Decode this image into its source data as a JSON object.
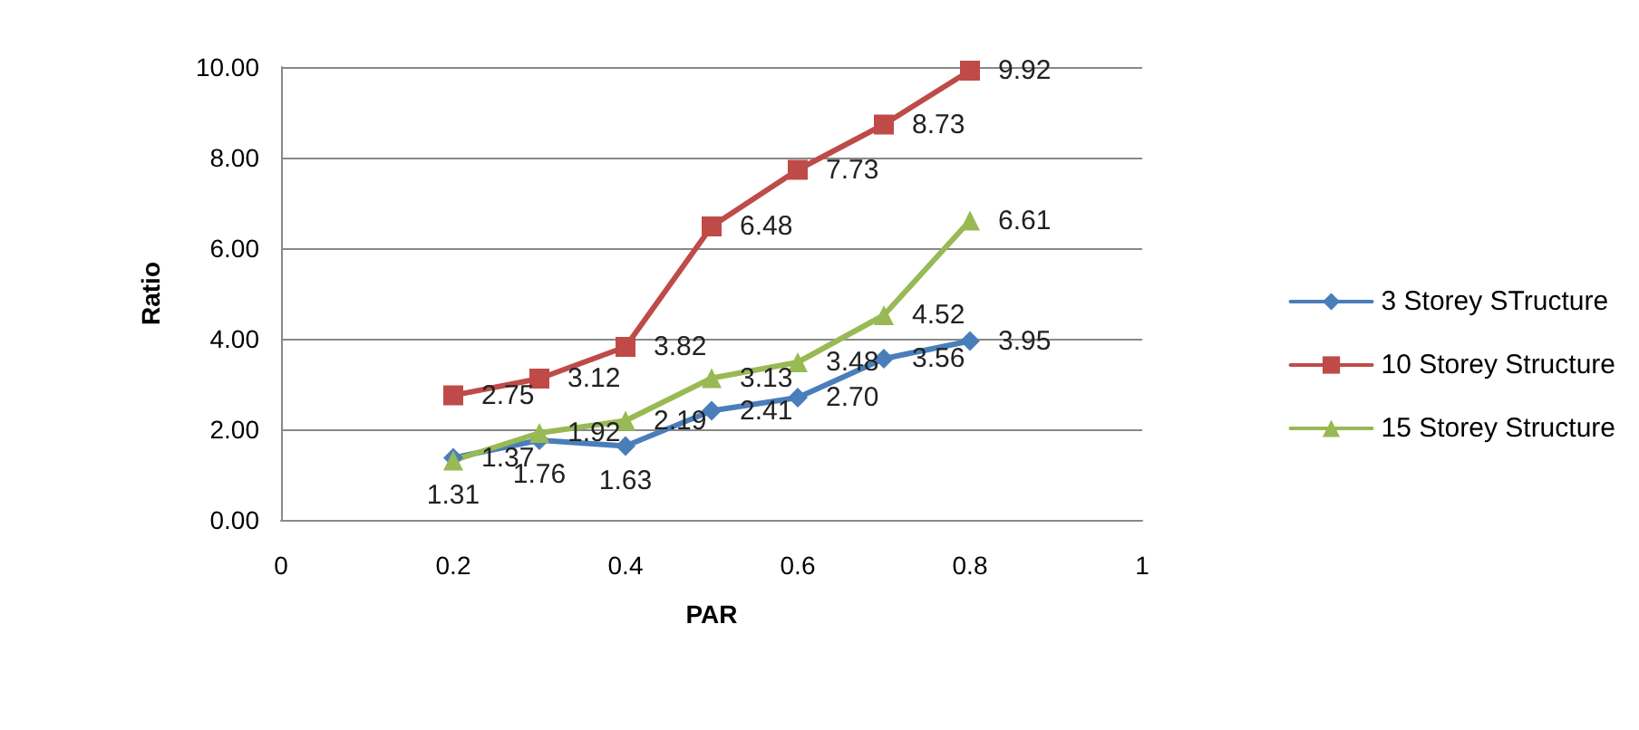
{
  "chart_data": {
    "type": "line",
    "xlabel": "PAR",
    "ylabel": "Ratio",
    "x": [
      0.2,
      0.3,
      0.4,
      0.5,
      0.6,
      0.7,
      0.8
    ],
    "series": [
      {
        "name": "3 Storey STructure",
        "color": "#4a7ebb",
        "marker": "diamond",
        "values": [
          1.37,
          1.76,
          1.63,
          2.41,
          2.7,
          3.56,
          3.95
        ],
        "value_labels": [
          "1.37",
          "1.76",
          "1.63",
          "2.41",
          "2.70",
          "3.56",
          "3.95"
        ]
      },
      {
        "name": "10 Storey Structure",
        "color": "#be4b48",
        "marker": "square",
        "values": [
          2.75,
          3.12,
          3.82,
          6.48,
          7.73,
          8.73,
          9.92
        ],
        "value_labels": [
          "2.75",
          "3.12",
          "3.82",
          "6.48",
          "7.73",
          "8.73",
          "9.92"
        ]
      },
      {
        "name": "15 Storey Structure",
        "color": "#98b954",
        "marker": "triangle",
        "values": [
          1.31,
          1.92,
          2.19,
          3.13,
          3.48,
          4.52,
          6.61
        ],
        "value_labels": [
          "1.31",
          "1.92",
          "2.19",
          "3.13",
          "3.48",
          "4.52",
          "6.61"
        ]
      }
    ],
    "xlim": [
      0,
      1
    ],
    "xticks": [
      0,
      0.2,
      0.4,
      0.6,
      0.8,
      1
    ],
    "ylim": [
      0,
      10
    ],
    "yticks": [
      {
        "value": 0,
        "label": "0.00"
      },
      {
        "value": 2,
        "label": "2.00"
      },
      {
        "value": 4,
        "label": "4.00"
      },
      {
        "value": 6,
        "label": "6.00"
      },
      {
        "value": 8,
        "label": "8.00"
      },
      {
        "value": 10,
        "label": "10.00"
      }
    ],
    "grid": "y",
    "legend": "right",
    "line_style": "solid"
  }
}
